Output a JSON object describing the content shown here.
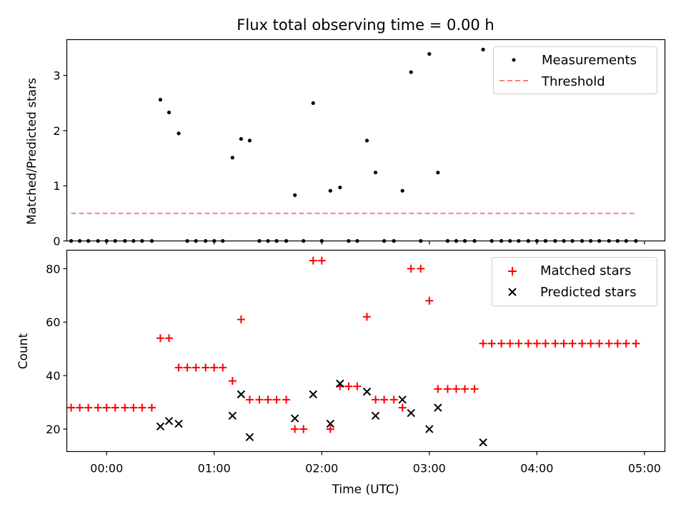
{
  "chart_data": [
    {
      "type": "scatter",
      "title": "Flux total observing time = 0.00 h",
      "xlabel": "",
      "ylabel": "Matched/Predicted stars",
      "xlim": [
        -0.37,
        5.19
      ],
      "ylim": [
        0,
        3.65
      ],
      "yticks": [
        0,
        1,
        2,
        3
      ],
      "ytick_labels": [
        "0",
        "1",
        "2",
        "3"
      ],
      "legend": {
        "position": "top-right",
        "entries": [
          "Measurements",
          "Threshold"
        ]
      },
      "series": [
        {
          "name": "Measurements",
          "marker": "dot",
          "color": "#000000",
          "points": [
            [
              -0.33,
              0
            ],
            [
              -0.25,
              0
            ],
            [
              -0.17,
              0
            ],
            [
              -0.08,
              0
            ],
            [
              0.0,
              0
            ],
            [
              0.08,
              0
            ],
            [
              0.17,
              0
            ],
            [
              0.25,
              0
            ],
            [
              0.33,
              0
            ],
            [
              0.42,
              0
            ],
            [
              0.5,
              2.56
            ],
            [
              0.58,
              2.33
            ],
            [
              0.67,
              1.95
            ],
            [
              0.75,
              0
            ],
            [
              0.83,
              0
            ],
            [
              0.92,
              0
            ],
            [
              1.0,
              0
            ],
            [
              1.08,
              0
            ],
            [
              1.17,
              1.51
            ],
            [
              1.25,
              1.85
            ],
            [
              1.33,
              1.82
            ],
            [
              1.42,
              0
            ],
            [
              1.5,
              0
            ],
            [
              1.58,
              0
            ],
            [
              1.67,
              0
            ],
            [
              1.75,
              0.83
            ],
            [
              1.83,
              0
            ],
            [
              1.92,
              2.5
            ],
            [
              2.0,
              0
            ],
            [
              2.08,
              0.91
            ],
            [
              2.17,
              0.97
            ],
            [
              2.25,
              0
            ],
            [
              2.33,
              0
            ],
            [
              2.42,
              1.82
            ],
            [
              2.5,
              1.24
            ],
            [
              2.58,
              0
            ],
            [
              2.67,
              0
            ],
            [
              2.75,
              0.91
            ],
            [
              2.83,
              3.06
            ],
            [
              2.92,
              0
            ],
            [
              3.0,
              3.39
            ],
            [
              3.08,
              1.24
            ],
            [
              3.17,
              0
            ],
            [
              3.25,
              0
            ],
            [
              3.33,
              0
            ],
            [
              3.42,
              0
            ],
            [
              3.5,
              3.47
            ],
            [
              3.58,
              0
            ],
            [
              3.67,
              0
            ],
            [
              3.75,
              0
            ],
            [
              3.83,
              0
            ],
            [
              3.92,
              0
            ],
            [
              4.0,
              0
            ],
            [
              4.08,
              0
            ],
            [
              4.17,
              0
            ],
            [
              4.25,
              0
            ],
            [
              4.33,
              0
            ],
            [
              4.42,
              0
            ],
            [
              4.5,
              0
            ],
            [
              4.58,
              0
            ],
            [
              4.67,
              0
            ],
            [
              4.75,
              0
            ],
            [
              4.83,
              0
            ],
            [
              4.92,
              0
            ]
          ]
        },
        {
          "name": "Threshold",
          "style": "dashed",
          "color": "#ff7f7f",
          "points": [
            [
              -0.33,
              0.5
            ],
            [
              4.92,
              0.5
            ]
          ]
        }
      ]
    },
    {
      "type": "scatter",
      "title": "",
      "xlabel": "Time (UTC)",
      "ylabel": "Count",
      "xlim": [
        -0.37,
        5.19
      ],
      "ylim": [
        11.6,
        86.9
      ],
      "xticks": [
        0,
        1,
        2,
        3,
        4,
        5
      ],
      "xtick_labels": [
        "00:00",
        "01:00",
        "02:00",
        "03:00",
        "04:00",
        "05:00"
      ],
      "yticks": [
        20,
        40,
        60,
        80
      ],
      "ytick_labels": [
        "20",
        "40",
        "60",
        "80"
      ],
      "legend": {
        "position": "top-right",
        "entries": [
          "Matched stars",
          "Predicted stars"
        ]
      },
      "series": [
        {
          "name": "Matched stars",
          "marker": "plus",
          "color": "#ff0000",
          "points": [
            [
              -0.33,
              28
            ],
            [
              -0.25,
              28
            ],
            [
              -0.17,
              28
            ],
            [
              -0.08,
              28
            ],
            [
              0.0,
              28
            ],
            [
              0.08,
              28
            ],
            [
              0.17,
              28
            ],
            [
              0.25,
              28
            ],
            [
              0.33,
              28
            ],
            [
              0.42,
              28
            ],
            [
              0.5,
              54
            ],
            [
              0.58,
              54
            ],
            [
              0.67,
              43
            ],
            [
              0.75,
              43
            ],
            [
              0.83,
              43
            ],
            [
              0.92,
              43
            ],
            [
              1.0,
              43
            ],
            [
              1.08,
              43
            ],
            [
              1.17,
              38
            ],
            [
              1.25,
              61
            ],
            [
              1.33,
              31
            ],
            [
              1.42,
              31
            ],
            [
              1.5,
              31
            ],
            [
              1.58,
              31
            ],
            [
              1.67,
              31
            ],
            [
              1.75,
              20
            ],
            [
              1.83,
              20
            ],
            [
              1.92,
              83
            ],
            [
              2.0,
              83
            ],
            [
              2.08,
              20
            ],
            [
              2.17,
              36
            ],
            [
              2.25,
              36
            ],
            [
              2.33,
              36
            ],
            [
              2.42,
              62
            ],
            [
              2.5,
              31
            ],
            [
              2.58,
              31
            ],
            [
              2.67,
              31
            ],
            [
              2.75,
              28
            ],
            [
              2.83,
              80
            ],
            [
              2.92,
              80
            ],
            [
              3.0,
              68
            ],
            [
              3.08,
              35
            ],
            [
              3.17,
              35
            ],
            [
              3.25,
              35
            ],
            [
              3.33,
              35
            ],
            [
              3.42,
              35
            ],
            [
              3.5,
              52
            ],
            [
              3.58,
              52
            ],
            [
              3.67,
              52
            ],
            [
              3.75,
              52
            ],
            [
              3.83,
              52
            ],
            [
              3.92,
              52
            ],
            [
              4.0,
              52
            ],
            [
              4.08,
              52
            ],
            [
              4.17,
              52
            ],
            [
              4.25,
              52
            ],
            [
              4.33,
              52
            ],
            [
              4.42,
              52
            ],
            [
              4.5,
              52
            ],
            [
              4.58,
              52
            ],
            [
              4.67,
              52
            ],
            [
              4.75,
              52
            ],
            [
              4.83,
              52
            ],
            [
              4.92,
              52
            ]
          ]
        },
        {
          "name": "Predicted stars",
          "marker": "x",
          "color": "#000000",
          "points": [
            [
              0.5,
              21
            ],
            [
              0.58,
              23
            ],
            [
              0.67,
              22
            ],
            [
              1.17,
              25
            ],
            [
              1.25,
              33
            ],
            [
              1.33,
              17
            ],
            [
              1.75,
              24
            ],
            [
              1.92,
              33
            ],
            [
              2.08,
              22
            ],
            [
              2.17,
              37
            ],
            [
              2.42,
              34
            ],
            [
              2.5,
              25
            ],
            [
              2.75,
              31
            ],
            [
              2.83,
              26
            ],
            [
              3.0,
              20
            ],
            [
              3.08,
              28
            ],
            [
              3.5,
              15
            ]
          ]
        }
      ]
    }
  ]
}
